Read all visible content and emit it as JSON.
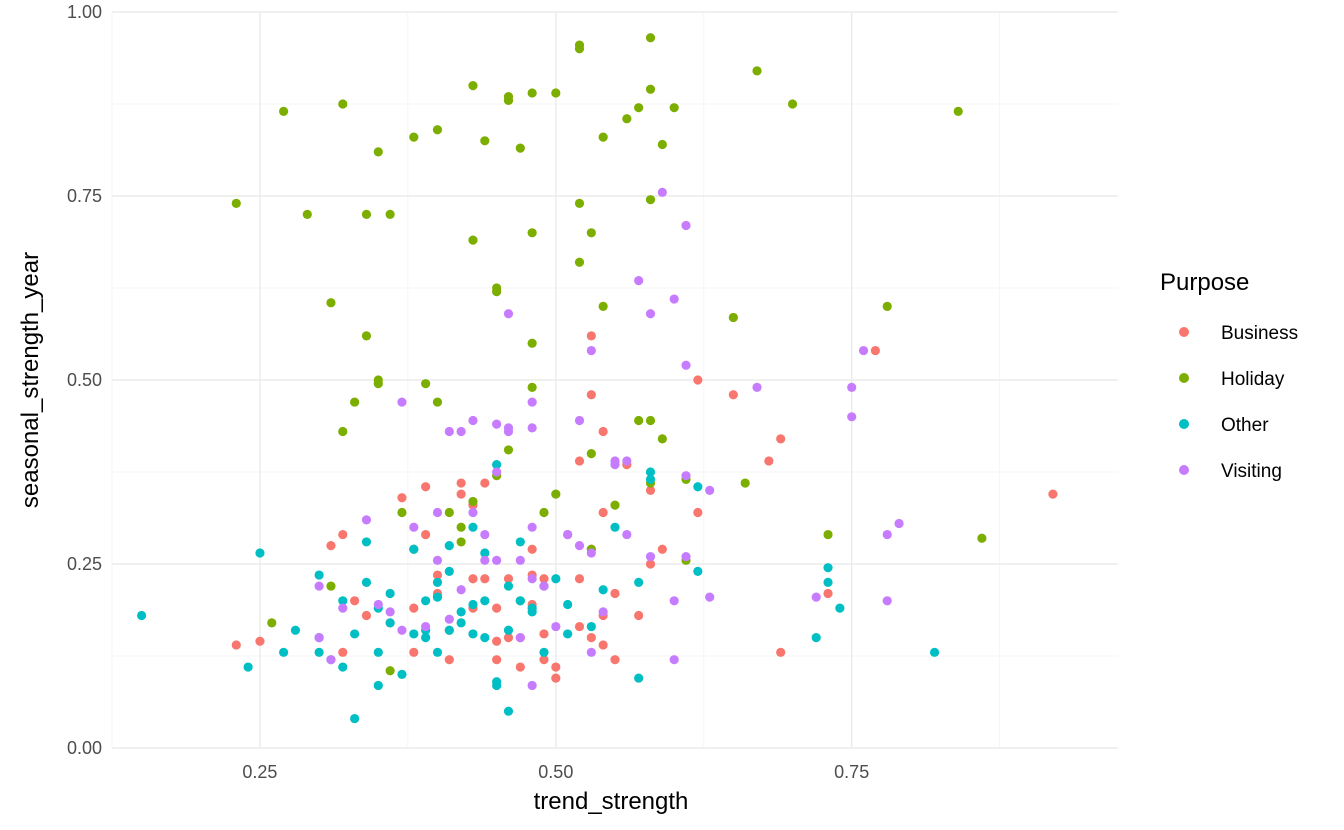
{
  "chart_data": {
    "type": "scatter",
    "xlabel": "trend_strength",
    "ylabel": "seasonal_strength_year",
    "xlim": [
      0.125,
      0.975
    ],
    "ylim": [
      0.0,
      1.0
    ],
    "x_ticks": [
      {
        "value": 0.25,
        "label": "0.25"
      },
      {
        "value": 0.5,
        "label": "0.50"
      },
      {
        "value": 0.75,
        "label": "0.75"
      }
    ],
    "y_ticks": [
      {
        "value": 0.0,
        "label": "0.00"
      },
      {
        "value": 0.25,
        "label": "0.25"
      },
      {
        "value": 0.5,
        "label": "0.50"
      },
      {
        "value": 0.75,
        "label": "0.75"
      },
      {
        "value": 1.0,
        "label": "1.00"
      }
    ],
    "grid": true,
    "legend": {
      "title": "Purpose",
      "position": "right",
      "entries": [
        {
          "name": "Business",
          "color": "#F8766D"
        },
        {
          "name": "Holiday",
          "color": "#7CAE00"
        },
        {
          "name": "Other",
          "color": "#00BFC4"
        },
        {
          "name": "Visiting",
          "color": "#C77CFF"
        }
      ]
    },
    "series": [
      {
        "name": "Business",
        "color": "#F8766D",
        "points": [
          [
            0.23,
            0.14
          ],
          [
            0.25,
            0.145
          ],
          [
            0.31,
            0.275
          ],
          [
            0.32,
            0.29
          ],
          [
            0.32,
            0.13
          ],
          [
            0.33,
            0.2
          ],
          [
            0.34,
            0.18
          ],
          [
            0.36,
            0.17
          ],
          [
            0.37,
            0.34
          ],
          [
            0.38,
            0.19
          ],
          [
            0.38,
            0.13
          ],
          [
            0.39,
            0.355
          ],
          [
            0.39,
            0.29
          ],
          [
            0.4,
            0.235
          ],
          [
            0.4,
            0.21
          ],
          [
            0.41,
            0.16
          ],
          [
            0.41,
            0.12
          ],
          [
            0.42,
            0.36
          ],
          [
            0.42,
            0.345
          ],
          [
            0.43,
            0.33
          ],
          [
            0.43,
            0.23
          ],
          [
            0.43,
            0.19
          ],
          [
            0.44,
            0.36
          ],
          [
            0.44,
            0.23
          ],
          [
            0.45,
            0.19
          ],
          [
            0.45,
            0.145
          ],
          [
            0.45,
            0.12
          ],
          [
            0.46,
            0.15
          ],
          [
            0.46,
            0.23
          ],
          [
            0.47,
            0.11
          ],
          [
            0.47,
            0.15
          ],
          [
            0.48,
            0.195
          ],
          [
            0.48,
            0.27
          ],
          [
            0.48,
            0.235
          ],
          [
            0.49,
            0.155
          ],
          [
            0.49,
            0.12
          ],
          [
            0.49,
            0.23
          ],
          [
            0.5,
            0.11
          ],
          [
            0.5,
            0.095
          ],
          [
            0.51,
            0.29
          ],
          [
            0.52,
            0.165
          ],
          [
            0.52,
            0.39
          ],
          [
            0.52,
            0.23
          ],
          [
            0.53,
            0.56
          ],
          [
            0.53,
            0.48
          ],
          [
            0.53,
            0.27
          ],
          [
            0.53,
            0.15
          ],
          [
            0.54,
            0.43
          ],
          [
            0.54,
            0.32
          ],
          [
            0.54,
            0.18
          ],
          [
            0.54,
            0.14
          ],
          [
            0.55,
            0.12
          ],
          [
            0.55,
            0.21
          ],
          [
            0.56,
            0.385
          ],
          [
            0.57,
            0.18
          ],
          [
            0.58,
            0.35
          ],
          [
            0.58,
            0.25
          ],
          [
            0.59,
            0.27
          ],
          [
            0.62,
            0.5
          ],
          [
            0.62,
            0.32
          ],
          [
            0.65,
            0.48
          ],
          [
            0.68,
            0.39
          ],
          [
            0.69,
            0.13
          ],
          [
            0.69,
            0.42
          ],
          [
            0.73,
            0.21
          ],
          [
            0.77,
            0.54
          ],
          [
            0.92,
            0.345
          ]
        ]
      },
      {
        "name": "Holiday",
        "color": "#7CAE00",
        "points": [
          [
            0.23,
            0.74
          ],
          [
            0.26,
            0.17
          ],
          [
            0.27,
            0.865
          ],
          [
            0.29,
            0.725
          ],
          [
            0.31,
            0.22
          ],
          [
            0.31,
            0.605
          ],
          [
            0.32,
            0.875
          ],
          [
            0.32,
            0.43
          ],
          [
            0.33,
            0.47
          ],
          [
            0.34,
            0.56
          ],
          [
            0.34,
            0.725
          ],
          [
            0.35,
            0.81
          ],
          [
            0.35,
            0.5
          ],
          [
            0.35,
            0.495
          ],
          [
            0.36,
            0.105
          ],
          [
            0.36,
            0.725
          ],
          [
            0.37,
            0.32
          ],
          [
            0.38,
            0.83
          ],
          [
            0.38,
            0.27
          ],
          [
            0.39,
            0.495
          ],
          [
            0.4,
            0.84
          ],
          [
            0.4,
            0.47
          ],
          [
            0.41,
            0.32
          ],
          [
            0.42,
            0.3
          ],
          [
            0.42,
            0.28
          ],
          [
            0.43,
            0.335
          ],
          [
            0.43,
            0.9
          ],
          [
            0.43,
            0.69
          ],
          [
            0.44,
            0.825
          ],
          [
            0.45,
            0.62
          ],
          [
            0.45,
            0.625
          ],
          [
            0.45,
            0.37
          ],
          [
            0.46,
            0.885
          ],
          [
            0.46,
            0.88
          ],
          [
            0.46,
            0.88
          ],
          [
            0.46,
            0.405
          ],
          [
            0.47,
            0.815
          ],
          [
            0.47,
            0.2
          ],
          [
            0.48,
            0.7
          ],
          [
            0.48,
            0.55
          ],
          [
            0.48,
            0.49
          ],
          [
            0.48,
            0.89
          ],
          [
            0.49,
            0.32
          ],
          [
            0.5,
            0.89
          ],
          [
            0.5,
            0.345
          ],
          [
            0.52,
            0.95
          ],
          [
            0.52,
            0.955
          ],
          [
            0.52,
            0.74
          ],
          [
            0.52,
            0.66
          ],
          [
            0.53,
            0.7
          ],
          [
            0.53,
            0.4
          ],
          [
            0.53,
            0.27
          ],
          [
            0.54,
            0.6
          ],
          [
            0.54,
            0.83
          ],
          [
            0.55,
            0.33
          ],
          [
            0.56,
            0.855
          ],
          [
            0.57,
            0.445
          ],
          [
            0.57,
            0.87
          ],
          [
            0.58,
            0.965
          ],
          [
            0.58,
            0.895
          ],
          [
            0.58,
            0.745
          ],
          [
            0.58,
            0.445
          ],
          [
            0.58,
            0.36
          ],
          [
            0.59,
            0.82
          ],
          [
            0.59,
            0.42
          ],
          [
            0.6,
            0.87
          ],
          [
            0.61,
            0.255
          ],
          [
            0.61,
            0.365
          ],
          [
            0.65,
            0.585
          ],
          [
            0.66,
            0.36
          ],
          [
            0.67,
            0.92
          ],
          [
            0.7,
            0.875
          ],
          [
            0.73,
            0.29
          ],
          [
            0.78,
            0.6
          ],
          [
            0.84,
            0.865
          ],
          [
            0.86,
            0.285
          ]
        ]
      },
      {
        "name": "Other",
        "color": "#00BFC4",
        "points": [
          [
            0.15,
            0.18
          ],
          [
            0.24,
            0.11
          ],
          [
            0.25,
            0.265
          ],
          [
            0.27,
            0.13
          ],
          [
            0.28,
            0.16
          ],
          [
            0.3,
            0.235
          ],
          [
            0.3,
            0.15
          ],
          [
            0.3,
            0.13
          ],
          [
            0.31,
            0.12
          ],
          [
            0.32,
            0.11
          ],
          [
            0.32,
            0.2
          ],
          [
            0.33,
            0.04
          ],
          [
            0.33,
            0.155
          ],
          [
            0.34,
            0.225
          ],
          [
            0.34,
            0.28
          ],
          [
            0.35,
            0.19
          ],
          [
            0.35,
            0.085
          ],
          [
            0.35,
            0.13
          ],
          [
            0.36,
            0.17
          ],
          [
            0.36,
            0.21
          ],
          [
            0.37,
            0.1
          ],
          [
            0.38,
            0.27
          ],
          [
            0.38,
            0.155
          ],
          [
            0.39,
            0.2
          ],
          [
            0.39,
            0.15
          ],
          [
            0.39,
            0.16
          ],
          [
            0.4,
            0.205
          ],
          [
            0.4,
            0.225
          ],
          [
            0.4,
            0.13
          ],
          [
            0.41,
            0.275
          ],
          [
            0.41,
            0.24
          ],
          [
            0.41,
            0.16
          ],
          [
            0.42,
            0.185
          ],
          [
            0.42,
            0.17
          ],
          [
            0.43,
            0.195
          ],
          [
            0.43,
            0.155
          ],
          [
            0.43,
            0.3
          ],
          [
            0.44,
            0.265
          ],
          [
            0.44,
            0.15
          ],
          [
            0.44,
            0.2
          ],
          [
            0.45,
            0.385
          ],
          [
            0.45,
            0.085
          ],
          [
            0.45,
            0.09
          ],
          [
            0.46,
            0.16
          ],
          [
            0.46,
            0.22
          ],
          [
            0.46,
            0.05
          ],
          [
            0.47,
            0.28
          ],
          [
            0.47,
            0.2
          ],
          [
            0.48,
            0.185
          ],
          [
            0.48,
            0.19
          ],
          [
            0.49,
            0.13
          ],
          [
            0.49,
            0.22
          ],
          [
            0.5,
            0.23
          ],
          [
            0.51,
            0.155
          ],
          [
            0.51,
            0.195
          ],
          [
            0.53,
            0.165
          ],
          [
            0.54,
            0.215
          ],
          [
            0.55,
            0.3
          ],
          [
            0.57,
            0.095
          ],
          [
            0.57,
            0.225
          ],
          [
            0.58,
            0.365
          ],
          [
            0.58,
            0.375
          ],
          [
            0.62,
            0.355
          ],
          [
            0.62,
            0.24
          ],
          [
            0.72,
            0.15
          ],
          [
            0.73,
            0.245
          ],
          [
            0.73,
            0.225
          ],
          [
            0.74,
            0.19
          ],
          [
            0.82,
            0.13
          ]
        ]
      },
      {
        "name": "Visiting",
        "color": "#C77CFF",
        "points": [
          [
            0.3,
            0.15
          ],
          [
            0.3,
            0.22
          ],
          [
            0.31,
            0.12
          ],
          [
            0.32,
            0.19
          ],
          [
            0.34,
            0.31
          ],
          [
            0.35,
            0.195
          ],
          [
            0.36,
            0.185
          ],
          [
            0.37,
            0.47
          ],
          [
            0.37,
            0.16
          ],
          [
            0.38,
            0.3
          ],
          [
            0.39,
            0.165
          ],
          [
            0.4,
            0.255
          ],
          [
            0.4,
            0.32
          ],
          [
            0.41,
            0.43
          ],
          [
            0.41,
            0.175
          ],
          [
            0.42,
            0.43
          ],
          [
            0.42,
            0.215
          ],
          [
            0.43,
            0.445
          ],
          [
            0.43,
            0.32
          ],
          [
            0.44,
            0.29
          ],
          [
            0.44,
            0.255
          ],
          [
            0.45,
            0.44
          ],
          [
            0.45,
            0.255
          ],
          [
            0.45,
            0.375
          ],
          [
            0.46,
            0.43
          ],
          [
            0.46,
            0.435
          ],
          [
            0.46,
            0.59
          ],
          [
            0.47,
            0.255
          ],
          [
            0.47,
            0.15
          ],
          [
            0.48,
            0.435
          ],
          [
            0.48,
            0.47
          ],
          [
            0.48,
            0.3
          ],
          [
            0.48,
            0.085
          ],
          [
            0.48,
            0.23
          ],
          [
            0.49,
            0.22
          ],
          [
            0.5,
            0.165
          ],
          [
            0.51,
            0.29
          ],
          [
            0.52,
            0.445
          ],
          [
            0.52,
            0.275
          ],
          [
            0.53,
            0.265
          ],
          [
            0.53,
            0.54
          ],
          [
            0.53,
            0.13
          ],
          [
            0.54,
            0.185
          ],
          [
            0.55,
            0.39
          ],
          [
            0.55,
            0.385
          ],
          [
            0.56,
            0.29
          ],
          [
            0.56,
            0.39
          ],
          [
            0.57,
            0.635
          ],
          [
            0.58,
            0.59
          ],
          [
            0.58,
            0.26
          ],
          [
            0.59,
            0.755
          ],
          [
            0.6,
            0.61
          ],
          [
            0.6,
            0.2
          ],
          [
            0.6,
            0.12
          ],
          [
            0.61,
            0.71
          ],
          [
            0.61,
            0.52
          ],
          [
            0.61,
            0.37
          ],
          [
            0.61,
            0.26
          ],
          [
            0.63,
            0.205
          ],
          [
            0.63,
            0.35
          ],
          [
            0.67,
            0.49
          ],
          [
            0.72,
            0.205
          ],
          [
            0.75,
            0.49
          ],
          [
            0.75,
            0.45
          ],
          [
            0.76,
            0.54
          ],
          [
            0.78,
            0.29
          ],
          [
            0.78,
            0.2
          ],
          [
            0.79,
            0.305
          ]
        ]
      }
    ]
  }
}
